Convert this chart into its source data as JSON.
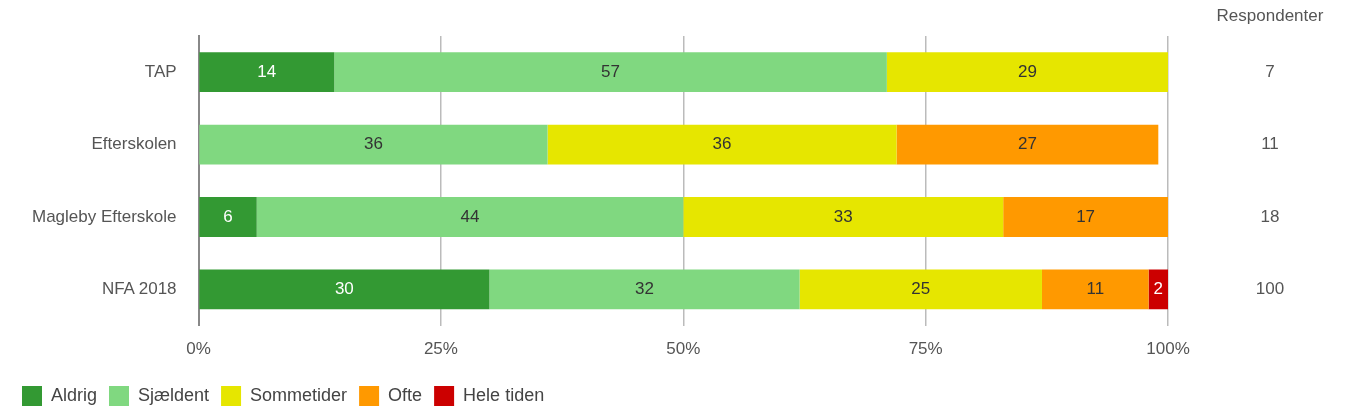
{
  "chart_data": {
    "type": "bar",
    "orientation": "horizontal",
    "stacked": true,
    "categories": [
      "TAP",
      "Efterskolen",
      "Magleby Efterskole",
      "NFA 2018"
    ],
    "series": [
      {
        "name": "Aldrig",
        "color": "#339933",
        "values": [
          14,
          null,
          6,
          30
        ]
      },
      {
        "name": "Sjældent",
        "color": "#80d880",
        "values": [
          57,
          36,
          44,
          32
        ]
      },
      {
        "name": "Sommetider",
        "color": "#e6e600",
        "values": [
          29,
          36,
          33,
          25
        ]
      },
      {
        "name": "Ofte",
        "color": "#ff9900",
        "values": [
          null,
          27,
          17,
          11
        ]
      },
      {
        "name": "Hele tiden",
        "color": "#cc0000",
        "values": [
          null,
          null,
          null,
          2
        ]
      }
    ],
    "xlim": [
      0,
      100
    ],
    "xticks": [
      {
        "value": 0,
        "label": "0%"
      },
      {
        "value": 25,
        "label": "25%"
      },
      {
        "value": 50,
        "label": "50%"
      },
      {
        "value": 75,
        "label": "75%"
      },
      {
        "value": 100,
        "label": "100%"
      }
    ],
    "grid": "x",
    "legend": "bottom",
    "data_labels": true,
    "annotations": [
      "Respondenter",
      "7",
      "11",
      "18",
      "100"
    ]
  }
}
